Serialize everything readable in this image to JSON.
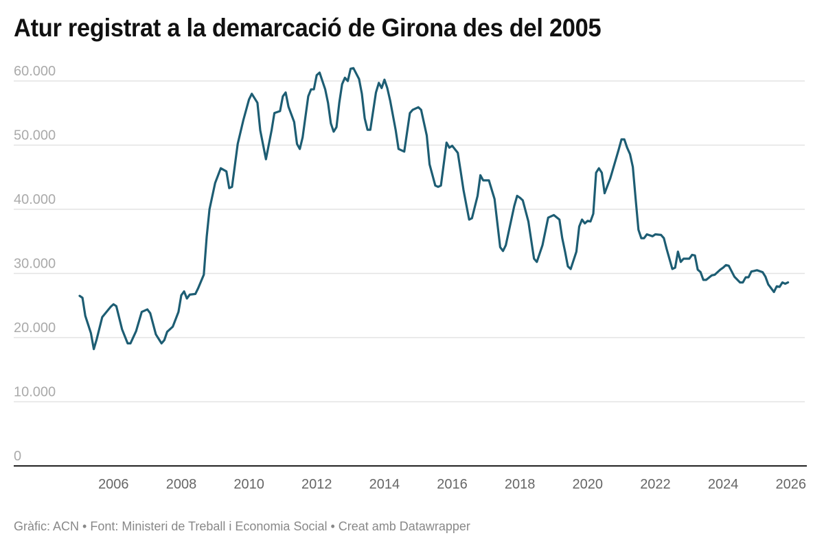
{
  "chart_data": {
    "type": "line",
    "title": "Atur registrat a la demarcació de Girona des del 2005",
    "xlabel": "",
    "ylabel": "",
    "ylim": [
      0,
      60000
    ],
    "yticks": [
      "0",
      "10.000",
      "20.000",
      "30.000",
      "40.000",
      "50.000",
      "60.000"
    ],
    "ytick_values": [
      0,
      10000,
      20000,
      30000,
      40000,
      50000,
      60000
    ],
    "xticks": [
      "2006",
      "2008",
      "2010",
      "2012",
      "2014",
      "2016",
      "2018",
      "2020",
      "2022",
      "2024",
      "2026"
    ],
    "grid": true,
    "line_color": "#1d5d73",
    "series": [
      {
        "x": [
          "2005-01",
          "2005-02",
          "2005-03",
          "2005-05",
          "2005-06",
          "2005-07",
          "2005-09",
          "2005-12",
          "2006-01",
          "2006-02",
          "2006-04",
          "2006-06",
          "2006-07",
          "2006-09",
          "2006-11",
          "2007-01",
          "2007-02",
          "2007-04",
          "2007-06",
          "2007-07",
          "2007-08",
          "2007-10",
          "2007-12",
          "2008-01",
          "2008-02",
          "2008-03",
          "2008-04",
          "2008-06",
          "2008-07",
          "2008-09",
          "2008-10",
          "2008-11",
          "2009-01",
          "2009-03",
          "2009-05",
          "2009-06",
          "2009-07",
          "2009-09",
          "2009-11",
          "2010-01",
          "2010-02",
          "2010-04",
          "2010-05",
          "2010-07",
          "2010-09",
          "2010-10",
          "2010-12",
          "2011-01",
          "2011-02",
          "2011-03",
          "2011-05",
          "2011-06",
          "2011-07",
          "2011-08",
          "2011-10",
          "2011-11",
          "2011-12",
          "2012-01",
          "2012-02",
          "2012-04",
          "2012-05",
          "2012-06",
          "2012-07",
          "2012-08",
          "2012-09",
          "2012-10",
          "2012-11",
          "2012-12",
          "2013-01",
          "2013-02",
          "2013-04",
          "2013-05",
          "2013-06",
          "2013-07",
          "2013-08",
          "2013-10",
          "2013-11",
          "2013-12",
          "2014-01",
          "2014-02",
          "2014-03",
          "2014-05",
          "2014-06",
          "2014-08",
          "2014-10",
          "2014-11",
          "2015-01",
          "2015-02",
          "2015-04",
          "2015-05",
          "2015-07",
          "2015-08",
          "2015-09",
          "2015-11",
          "2015-12",
          "2016-01",
          "2016-03",
          "2016-04",
          "2016-05",
          "2016-07",
          "2016-08",
          "2016-10",
          "2016-11",
          "2016-12",
          "2017-02",
          "2017-04",
          "2017-06",
          "2017-07",
          "2017-08",
          "2017-11",
          "2017-12",
          "2018-01",
          "2018-02",
          "2018-04",
          "2018-06",
          "2018-07",
          "2018-09",
          "2018-11",
          "2019-01",
          "2019-03",
          "2019-04",
          "2019-05",
          "2019-06",
          "2019-07",
          "2019-09",
          "2019-10",
          "2019-11",
          "2019-12",
          "2020-01",
          "2020-02",
          "2020-03",
          "2020-04",
          "2020-05",
          "2020-06",
          "2020-07",
          "2020-09",
          "2020-11",
          "2020-12",
          "2021-01",
          "2021-02",
          "2021-03",
          "2021-04",
          "2021-05",
          "2021-06",
          "2021-07",
          "2021-08",
          "2021-09",
          "2021-10",
          "2021-12",
          "2022-01",
          "2022-03",
          "2022-04",
          "2022-05",
          "2022-07",
          "2022-08",
          "2022-09",
          "2022-10",
          "2022-11",
          "2023-01",
          "2023-02",
          "2023-03",
          "2023-04",
          "2023-05",
          "2023-06",
          "2023-07",
          "2023-09",
          "2023-10",
          "2023-12",
          "2024-01",
          "2024-02",
          "2024-03",
          "2024-05",
          "2024-07",
          "2024-08",
          "2024-09",
          "2024-10",
          "2024-11",
          "2024-12",
          "2025-01",
          "2025-03",
          "2025-04",
          "2025-05",
          "2025-06",
          "2025-07",
          "2025-08",
          "2025-09",
          "2025-10",
          "2025-11",
          "2025-12"
        ],
        "y": [
          26500,
          26200,
          23400,
          20700,
          18200,
          19700,
          23200,
          24800,
          25200,
          24900,
          21300,
          19100,
          19100,
          21000,
          24000,
          24400,
          23800,
          20500,
          19100,
          19600,
          20900,
          21700,
          24000,
          26600,
          27200,
          26100,
          26700,
          26800,
          27700,
          29800,
          35700,
          40000,
          44100,
          46400,
          45900,
          43300,
          43500,
          50200,
          53900,
          57100,
          58000,
          56600,
          52300,
          47800,
          52300,
          55000,
          55300,
          57600,
          58200,
          56000,
          53600,
          50200,
          49400,
          51200,
          57600,
          58700,
          58700,
          60900,
          61300,
          58700,
          56600,
          53400,
          52100,
          52800,
          56600,
          59500,
          60500,
          60000,
          61900,
          62000,
          60300,
          58000,
          54200,
          52400,
          52400,
          58200,
          59700,
          58900,
          60200,
          58900,
          57000,
          52300,
          49400,
          49000,
          55000,
          55500,
          55900,
          55500,
          51500,
          47000,
          43700,
          43500,
          43700,
          50400,
          49600,
          49900,
          48800,
          45900,
          43000,
          38400,
          38600,
          42100,
          45300,
          44500,
          44500,
          41600,
          34100,
          33500,
          34400,
          40500,
          42100,
          41800,
          41400,
          38100,
          32300,
          31800,
          34400,
          38700,
          39100,
          38400,
          35500,
          33400,
          31100,
          30700,
          33400,
          37300,
          38400,
          37800,
          38200,
          38100,
          39300,
          45700,
          46400,
          45700,
          42500,
          44800,
          47800,
          49300,
          50900,
          50900,
          49600,
          48600,
          46600,
          41600,
          36800,
          35500,
          35500,
          36100,
          35800,
          36100,
          36000,
          35500,
          33800,
          30700,
          30900,
          33400,
          31800,
          32300,
          32300,
          32900,
          32800,
          30600,
          30200,
          29000,
          29000,
          29700,
          29800,
          30600,
          30900,
          31300,
          31200,
          29500,
          28600,
          28600,
          29400,
          29400,
          30300,
          30400,
          30500,
          30200,
          29500,
          28300,
          27700,
          27100,
          28000,
          27900,
          28600,
          28400,
          28600
        ]
      }
    ]
  },
  "footer": {
    "text": "Gràfic: ACN • Font: Ministeri de Treball i Economia Social  • Creat amb Datawrapper"
  }
}
